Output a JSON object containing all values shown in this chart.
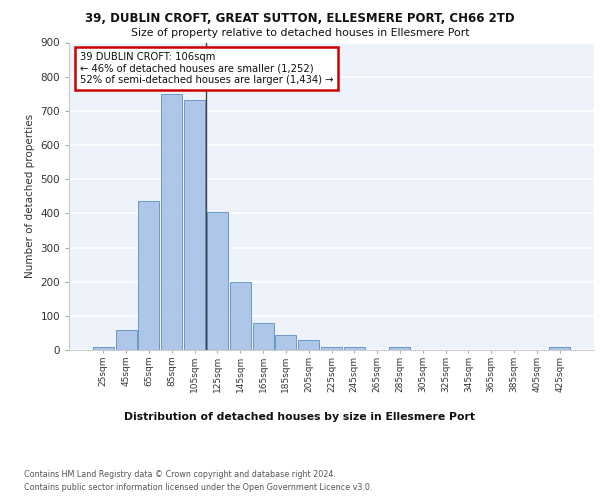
{
  "title1": "39, DUBLIN CROFT, GREAT SUTTON, ELLESMERE PORT, CH66 2TD",
  "title2": "Size of property relative to detached houses in Ellesmere Port",
  "xlabel": "Distribution of detached houses by size in Ellesmere Port",
  "ylabel": "Number of detached properties",
  "footnote": "Contains HM Land Registry data © Crown copyright and database right 2024.\nContains public sector information licensed under the Open Government Licence v3.0.",
  "bin_labels": [
    "25sqm",
    "45sqm",
    "65sqm",
    "85sqm",
    "105sqm",
    "125sqm",
    "145sqm",
    "165sqm",
    "185sqm",
    "205sqm",
    "225sqm",
    "245sqm",
    "265sqm",
    "285sqm",
    "305sqm",
    "325sqm",
    "345sqm",
    "365sqm",
    "385sqm",
    "405sqm",
    "425sqm"
  ],
  "bar_values": [
    10,
    60,
    435,
    748,
    733,
    403,
    198,
    78,
    43,
    29,
    10,
    10,
    0,
    8,
    0,
    0,
    0,
    0,
    0,
    0,
    8
  ],
  "bar_color": "#aec6e8",
  "bar_edge_color": "#5a8fc2",
  "annotation_title": "39 DUBLIN CROFT: 106sqm",
  "annotation_line1": "← 46% of detached houses are smaller (1,252)",
  "annotation_line2": "52% of semi-detached houses are larger (1,434) →",
  "annotation_box_color": "#ffffff",
  "annotation_box_edge": "#cc0000",
  "ylim": [
    0,
    900
  ],
  "yticks": [
    0,
    100,
    200,
    300,
    400,
    500,
    600,
    700,
    800,
    900
  ],
  "highlight_bar_index": 4,
  "background_color": "#eef2fa"
}
